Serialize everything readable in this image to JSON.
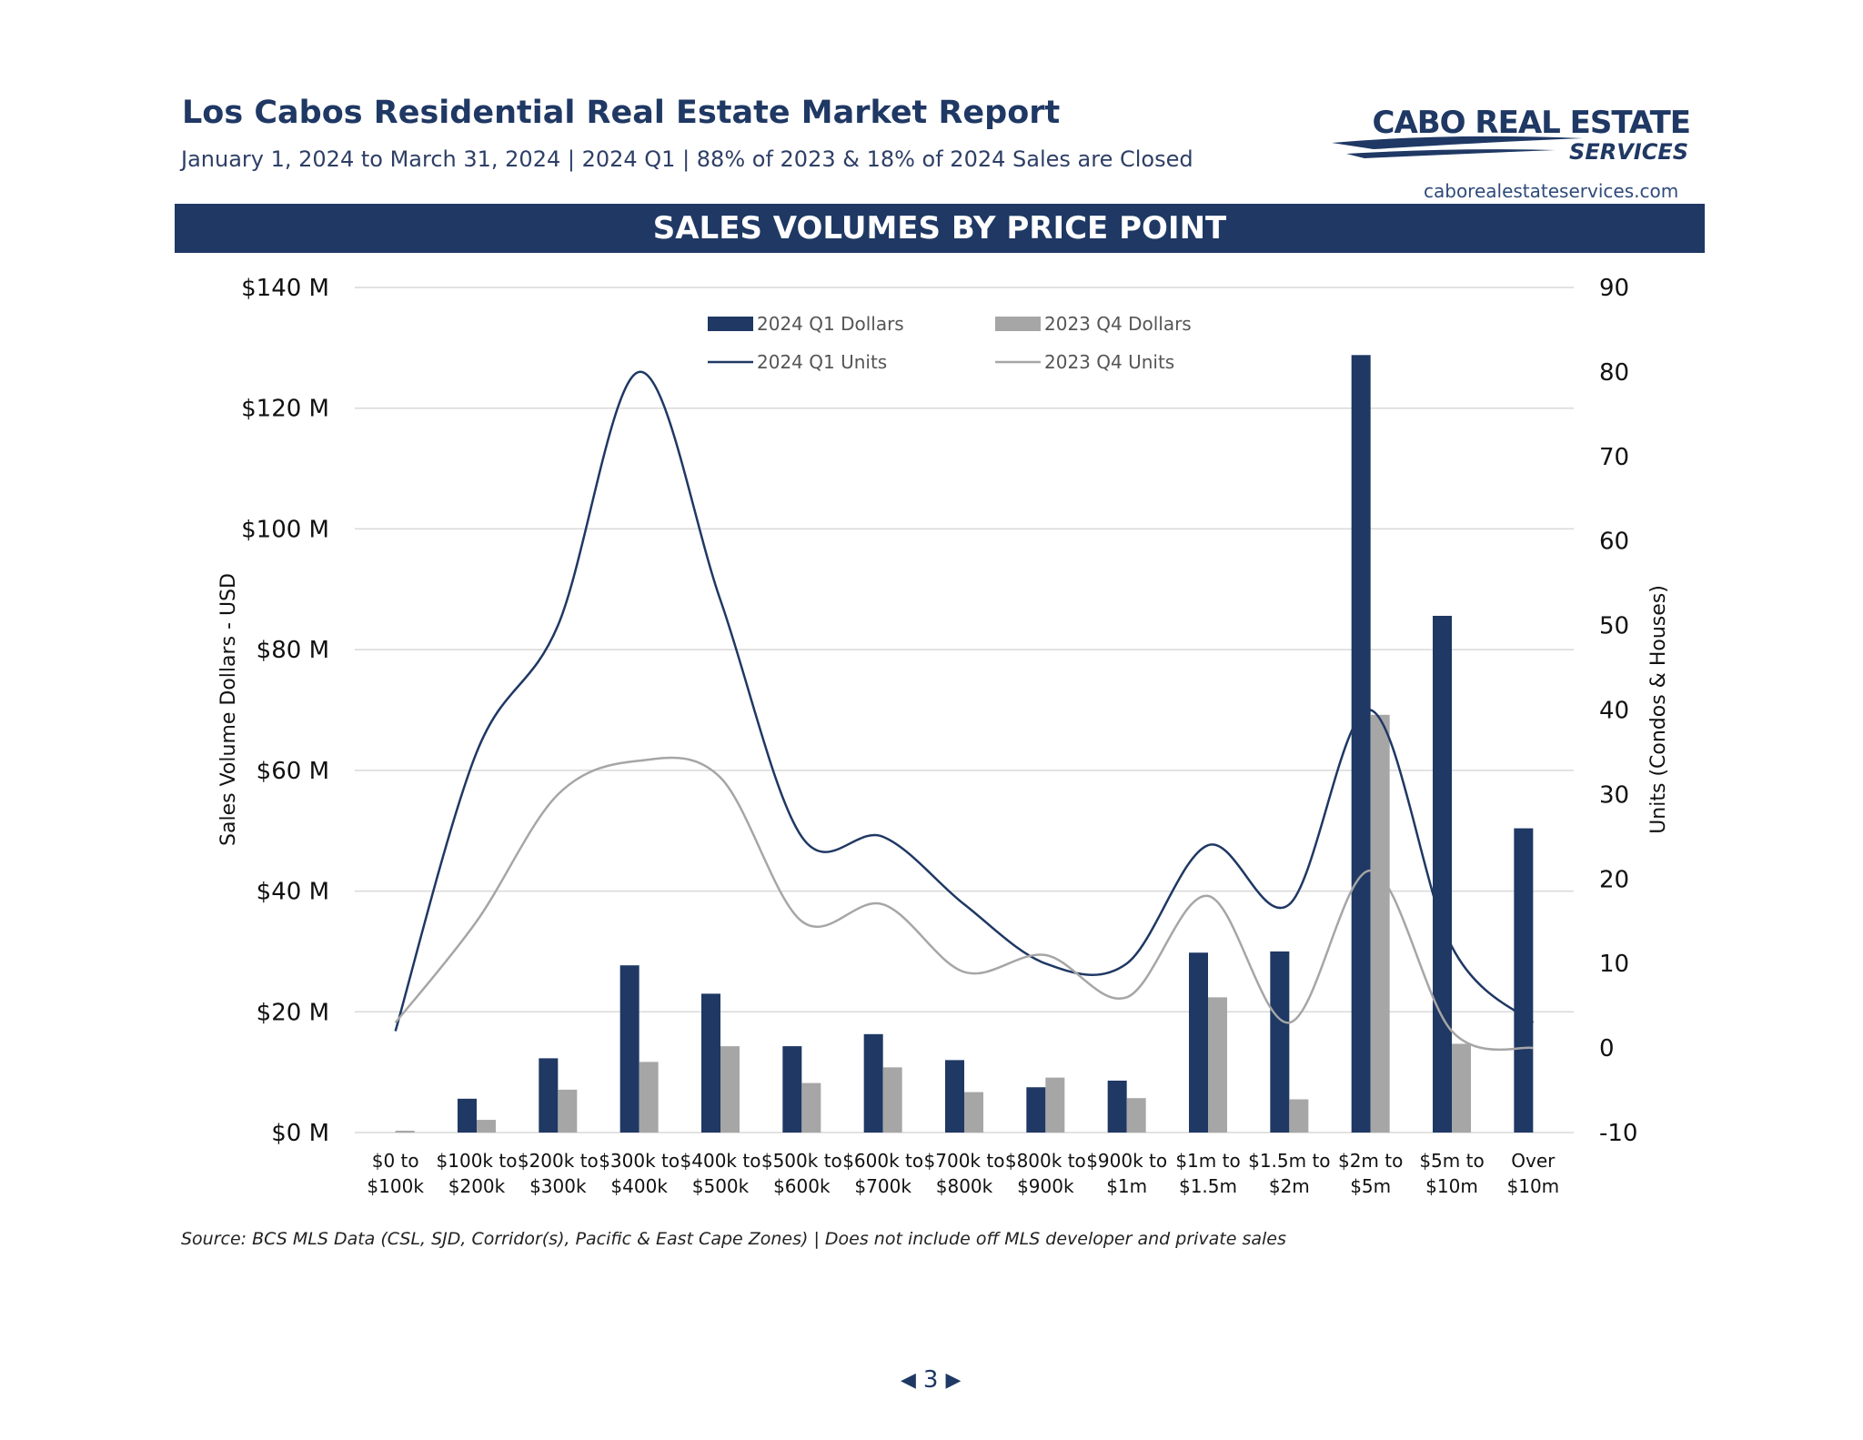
{
  "header": {
    "title": "Los Cabos Residential Real Estate Market Report",
    "subtitle": "January 1, 2024 to March 31, 2024 | 2024 Q1 | 88% of 2023 & 18% of 2024 Sales are Closed",
    "logo_line1": "CABO REAL ESTATE",
    "logo_line2": "SERVICES",
    "website": "caborealestateservices.com"
  },
  "banner": {
    "label": "SALES VOLUMES BY PRICE POINT"
  },
  "footer": {
    "source": "Source:  BCS MLS Data (CSL, SJD, Corridor(s), Pacific & East Cape Zones) | Does not include off MLS developer and private sales",
    "page_number": "3"
  },
  "colors": {
    "navy": "#1f3864",
    "gray": "#a6a6a6",
    "grid": "#d9d9d9"
  },
  "chart_data": {
    "type": "bar",
    "categories": [
      [
        "$0 to",
        "$100k"
      ],
      [
        "$100k to",
        "$200k"
      ],
      [
        "$200k to",
        "$300k"
      ],
      [
        "$300k to",
        "$400k"
      ],
      [
        "$400k to",
        "$500k"
      ],
      [
        "$500k to",
        "$600k"
      ],
      [
        "$600k to",
        "$700k"
      ],
      [
        "$700k to",
        "$800k"
      ],
      [
        "$800k to",
        "$900k"
      ],
      [
        "$900k to",
        "$1m"
      ],
      [
        "$1m to",
        "$1.5m"
      ],
      [
        "$1.5m to",
        "$2m"
      ],
      [
        "$2m to",
        "$5m"
      ],
      [
        "$5m to",
        "$10m"
      ],
      [
        "Over",
        "$10m"
      ]
    ],
    "series": [
      {
        "name": "2024 Q1 Dollars",
        "kind": "bar",
        "axis": "left",
        "color": "#1f3864",
        "values": [
          0,
          5.6,
          12.3,
          27.7,
          23.0,
          14.3,
          16.3,
          12.0,
          7.5,
          8.6,
          29.8,
          30.0,
          128.8,
          85.6,
          50.4
        ]
      },
      {
        "name": "2023 Q4 Dollars",
        "kind": "bar",
        "axis": "left",
        "color": "#a6a6a6",
        "values": [
          0.3,
          2.1,
          7.1,
          11.7,
          14.3,
          8.2,
          10.8,
          6.7,
          9.1,
          5.7,
          22.4,
          5.5,
          69.2,
          14.7,
          0
        ]
      },
      {
        "name": "2024 Q1 Units",
        "kind": "line",
        "axis": "right",
        "color": "#1f3864",
        "values": [
          2,
          35,
          50,
          80,
          53,
          25,
          25,
          17,
          10,
          10,
          24,
          17,
          40,
          12,
          3
        ]
      },
      {
        "name": "2023 Q4 Units",
        "kind": "line",
        "axis": "right",
        "color": "#a6a6a6",
        "values": [
          3,
          15,
          30,
          34,
          32,
          15,
          17,
          9,
          11,
          6,
          18,
          3,
          21,
          2,
          0
        ]
      }
    ],
    "ylabel": "Sales Volume Dollars - USD",
    "y2label": "Units (Condos & Houses)",
    "ylim": [
      0,
      140
    ],
    "yticks": [
      "$0 M",
      "$20 M",
      "$40 M",
      "$60 M",
      "$80 M",
      "$100 M",
      "$120 M",
      "$140 M"
    ],
    "y2lim": [
      -10,
      90
    ],
    "y2ticks": [
      "-10",
      "0",
      "10",
      "20",
      "30",
      "40",
      "50",
      "60",
      "70",
      "80",
      "90"
    ],
    "grid": true,
    "legend": "top-center"
  }
}
